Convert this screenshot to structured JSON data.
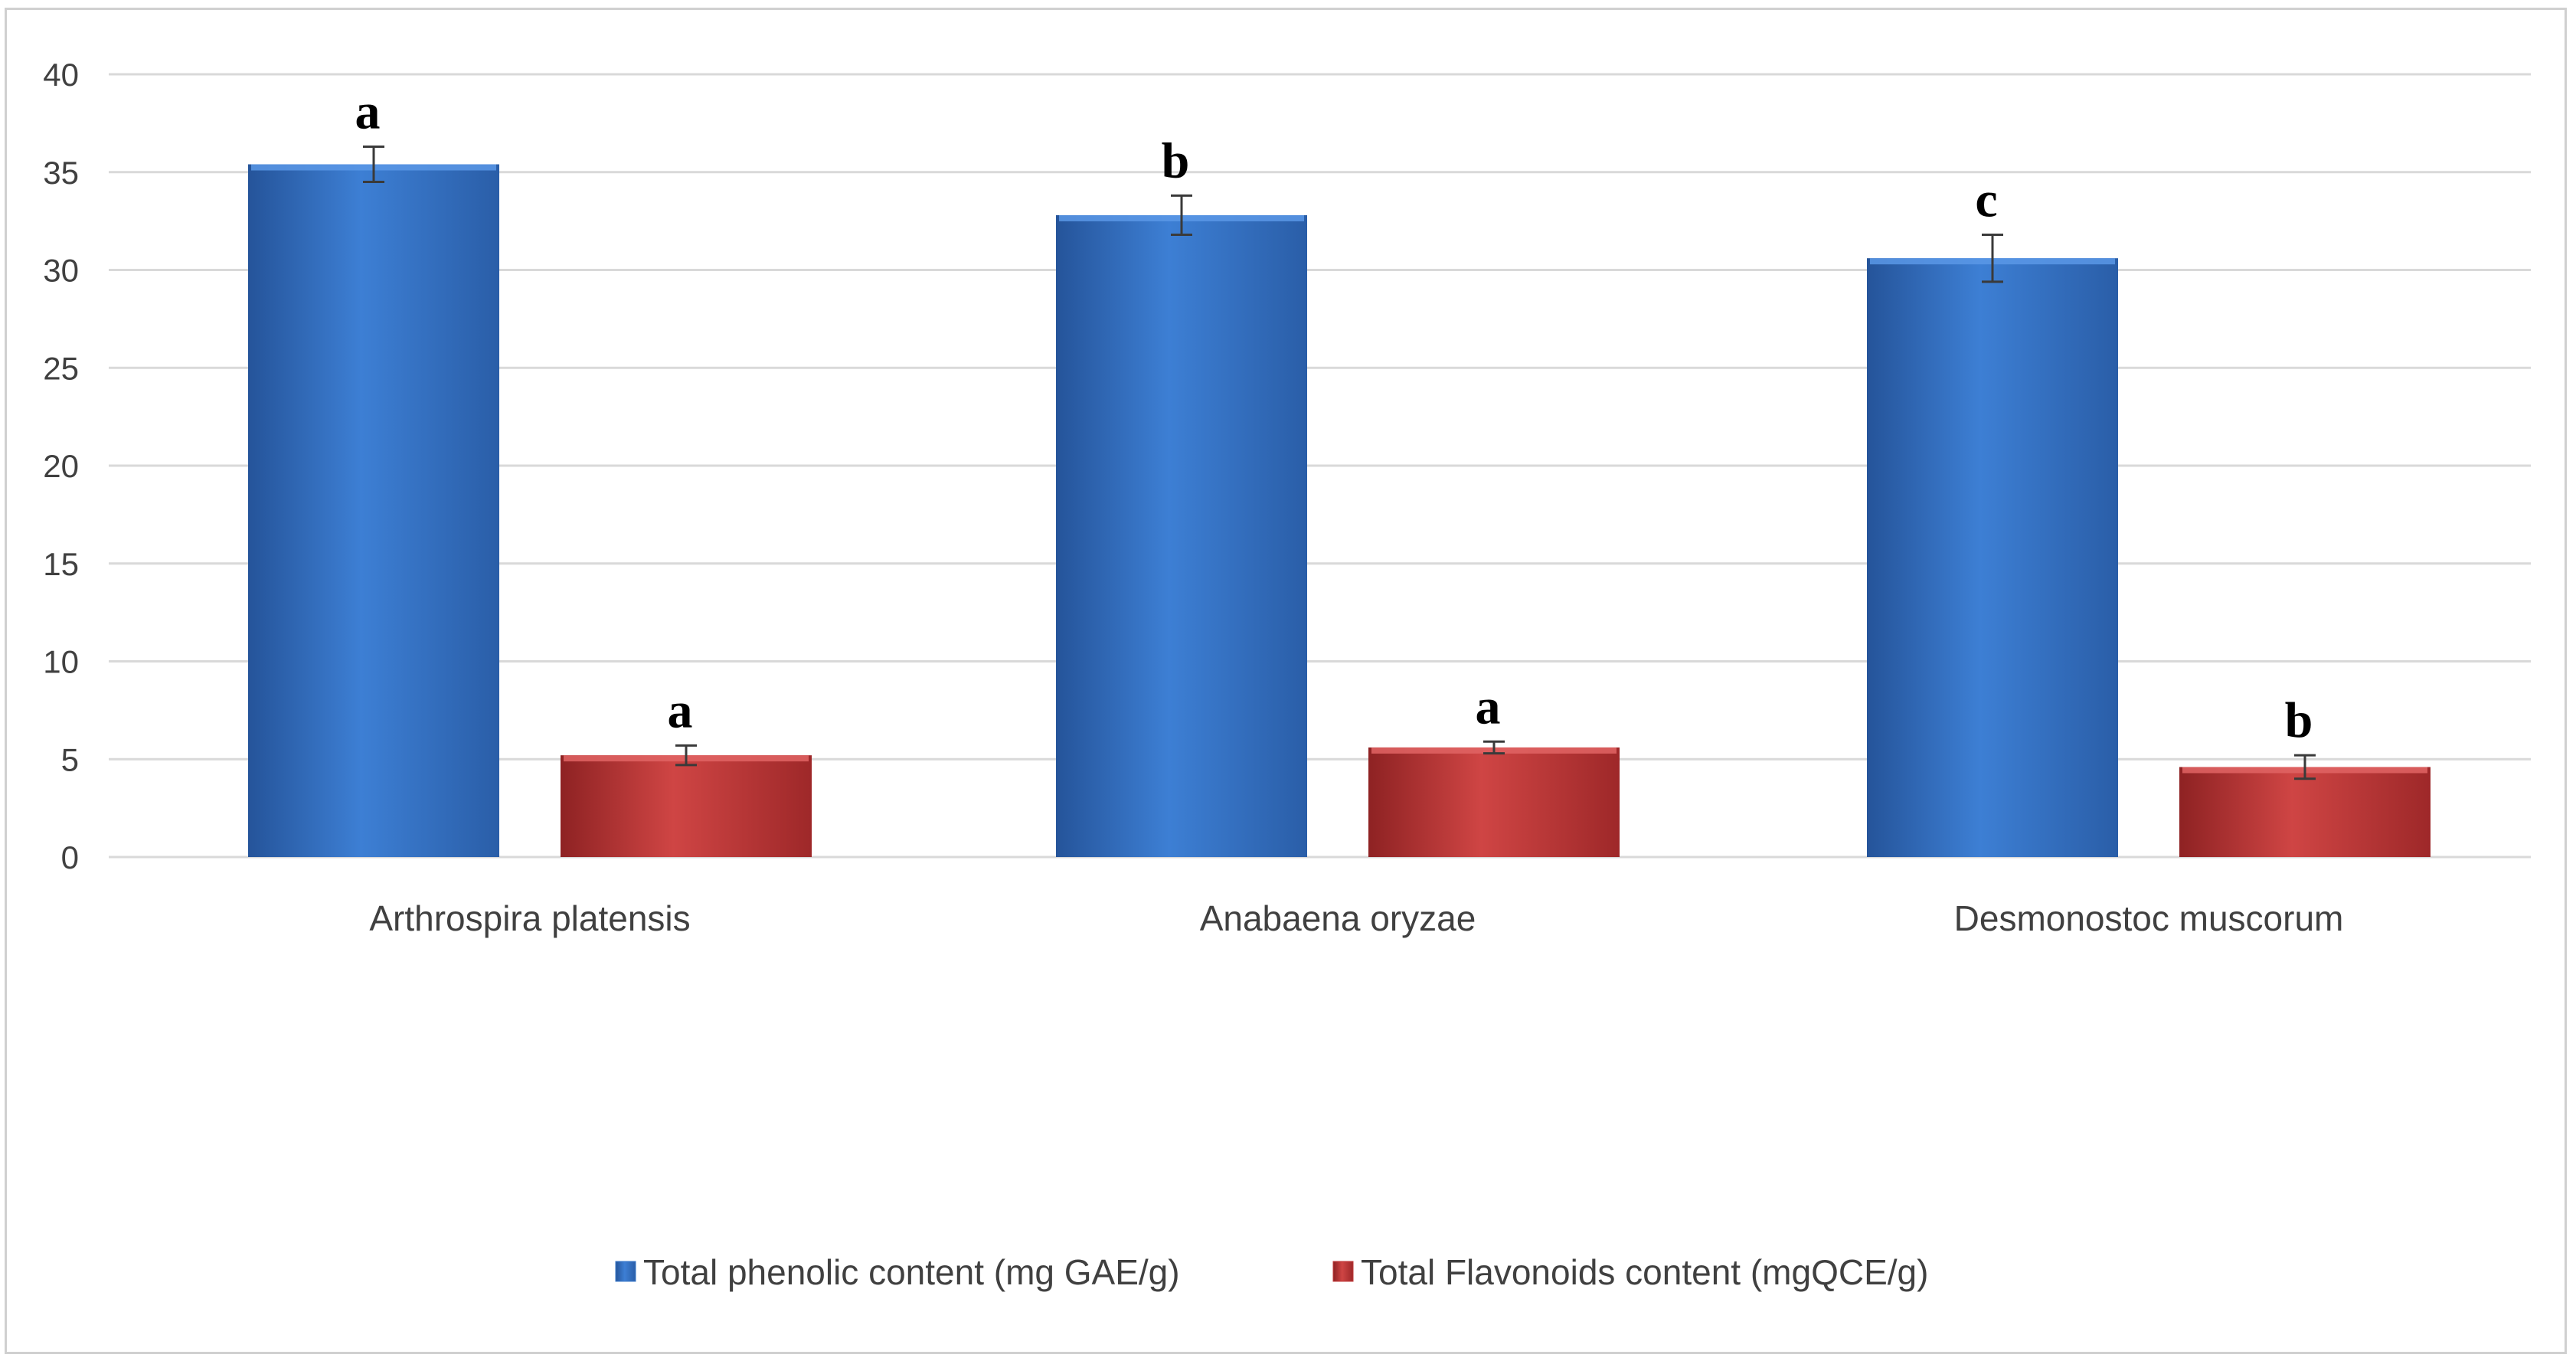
{
  "chart_data": {
    "type": "bar",
    "categories": [
      "Arthrospira platensis",
      "Anabaena oryzae",
      "Desmonostoc muscorum"
    ],
    "series": [
      {
        "name": "Total phenolic content (mg GAE/g)",
        "values": [
          35.4,
          32.8,
          30.6
        ],
        "errors": [
          0.9,
          1.0,
          1.2
        ],
        "significance": [
          "a",
          "b",
          "c"
        ],
        "color": "#3a78c9"
      },
      {
        "name": "Total Flavonoids content (mgQCE/g)",
        "values": [
          5.2,
          5.6,
          4.6
        ],
        "errors": [
          0.5,
          0.3,
          0.6
        ],
        "significance": [
          "a",
          "a",
          "b"
        ],
        "color": "#c0393a"
      }
    ],
    "ylim": [
      0,
      40
    ],
    "yticks": [
      "0",
      "5",
      "10",
      "15",
      "20",
      "25",
      "30",
      "35",
      "40"
    ],
    "grid": true,
    "legend_position": "bottom"
  }
}
